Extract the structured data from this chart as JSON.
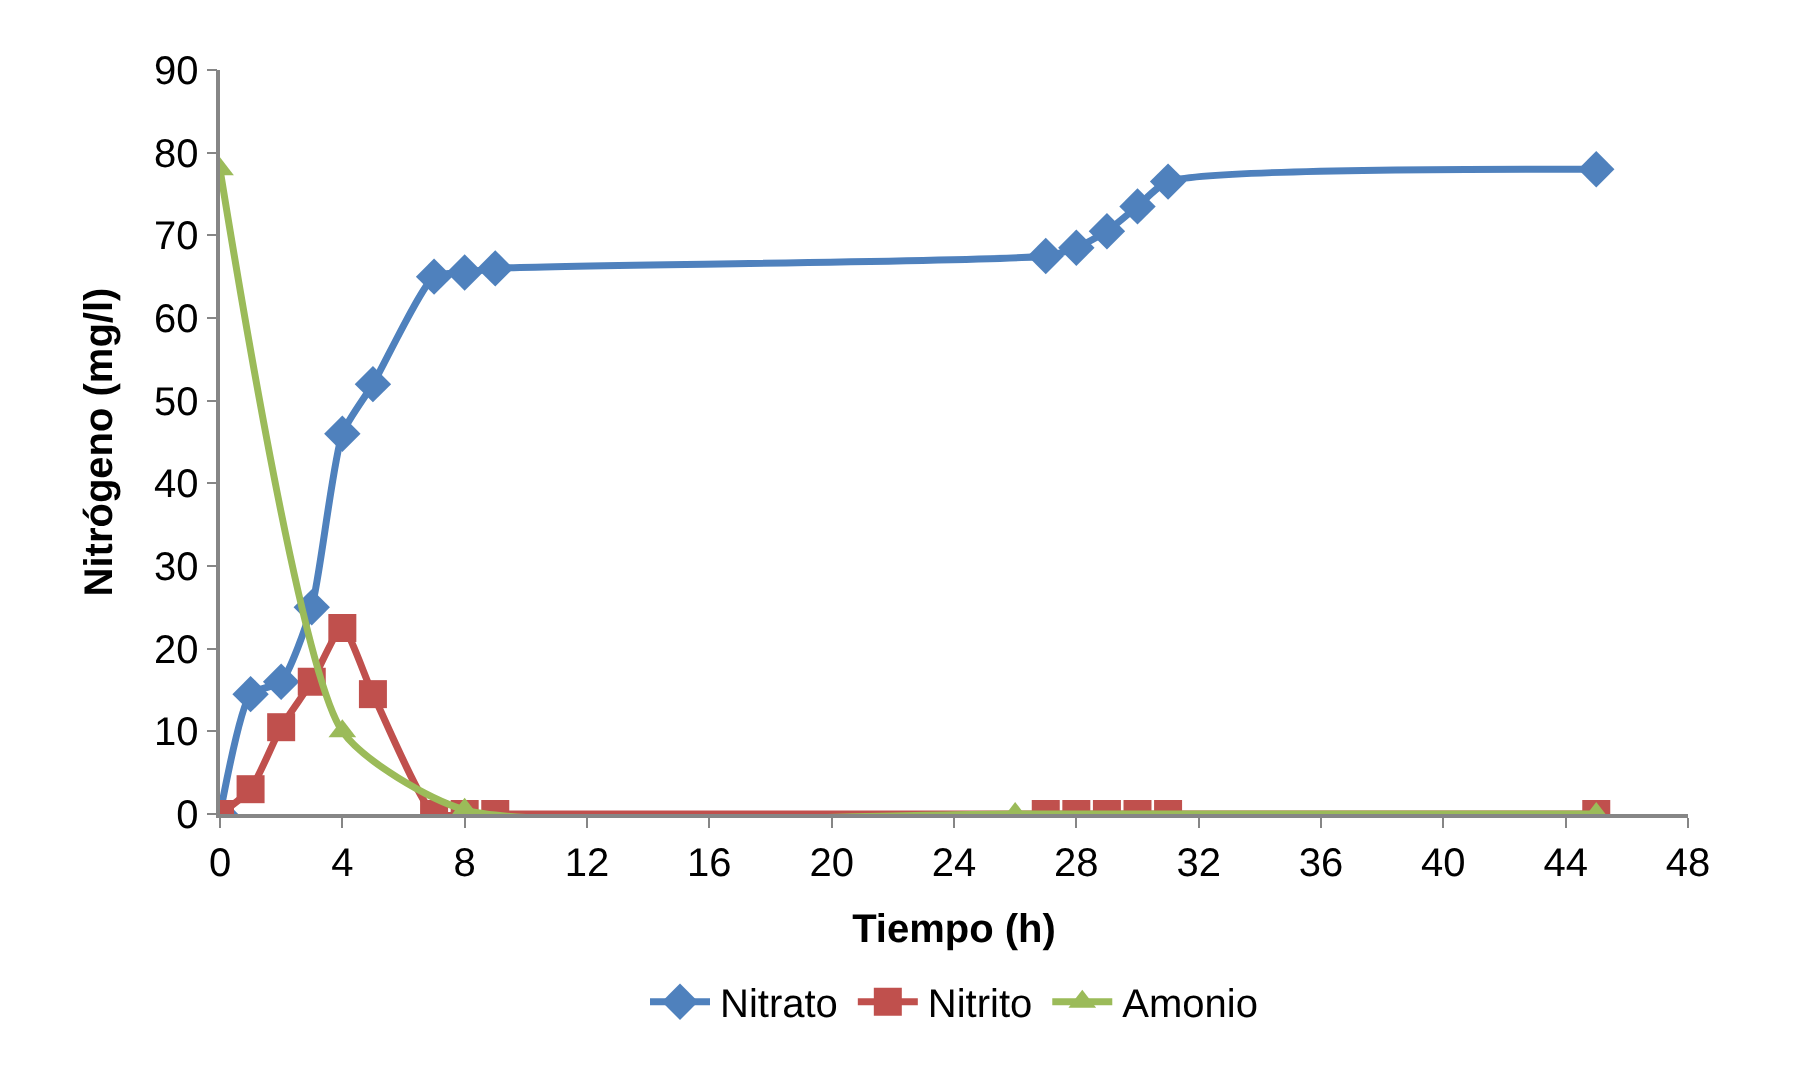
{
  "chart_data": {
    "type": "line",
    "xlabel": "Tiempo (h)",
    "ylabel": "Nitrógeno (mg/l)",
    "xlim": [
      0,
      48
    ],
    "xticks": [
      0,
      4,
      8,
      12,
      16,
      20,
      24,
      28,
      32,
      36,
      40,
      44,
      48
    ],
    "ylim": [
      0,
      90
    ],
    "yticks": [
      0,
      10,
      20,
      30,
      40,
      50,
      60,
      70,
      80,
      90
    ],
    "legend": "bottom",
    "line_style": "solid",
    "series": [
      {
        "name": "Nitrato",
        "color": "#4f81bd",
        "marker": "diamond",
        "x": [
          0,
          1,
          2,
          3,
          4,
          5,
          7,
          8,
          9,
          27,
          28,
          29,
          30,
          31,
          45
        ],
        "values": [
          0,
          14.5,
          16,
          25,
          46,
          52,
          65,
          65.5,
          66,
          67.5,
          68.5,
          70.5,
          73.5,
          76.5,
          78
        ]
      },
      {
        "name": "Nitrito",
        "color": "#c0504d",
        "marker": "square",
        "x": [
          0,
          1,
          2,
          3,
          4,
          5,
          7,
          8,
          9,
          27,
          28,
          29,
          30,
          31,
          45
        ],
        "values": [
          0,
          3,
          10.5,
          16,
          22.5,
          14.5,
          0,
          0,
          0,
          0,
          0,
          0,
          0,
          0,
          0
        ]
      },
      {
        "name": "Amonio",
        "color": "#9bbb59",
        "marker": "triangle",
        "x": [
          0,
          4,
          8,
          26,
          45
        ],
        "values": [
          78,
          10,
          0.5,
          0,
          0
        ]
      }
    ]
  }
}
